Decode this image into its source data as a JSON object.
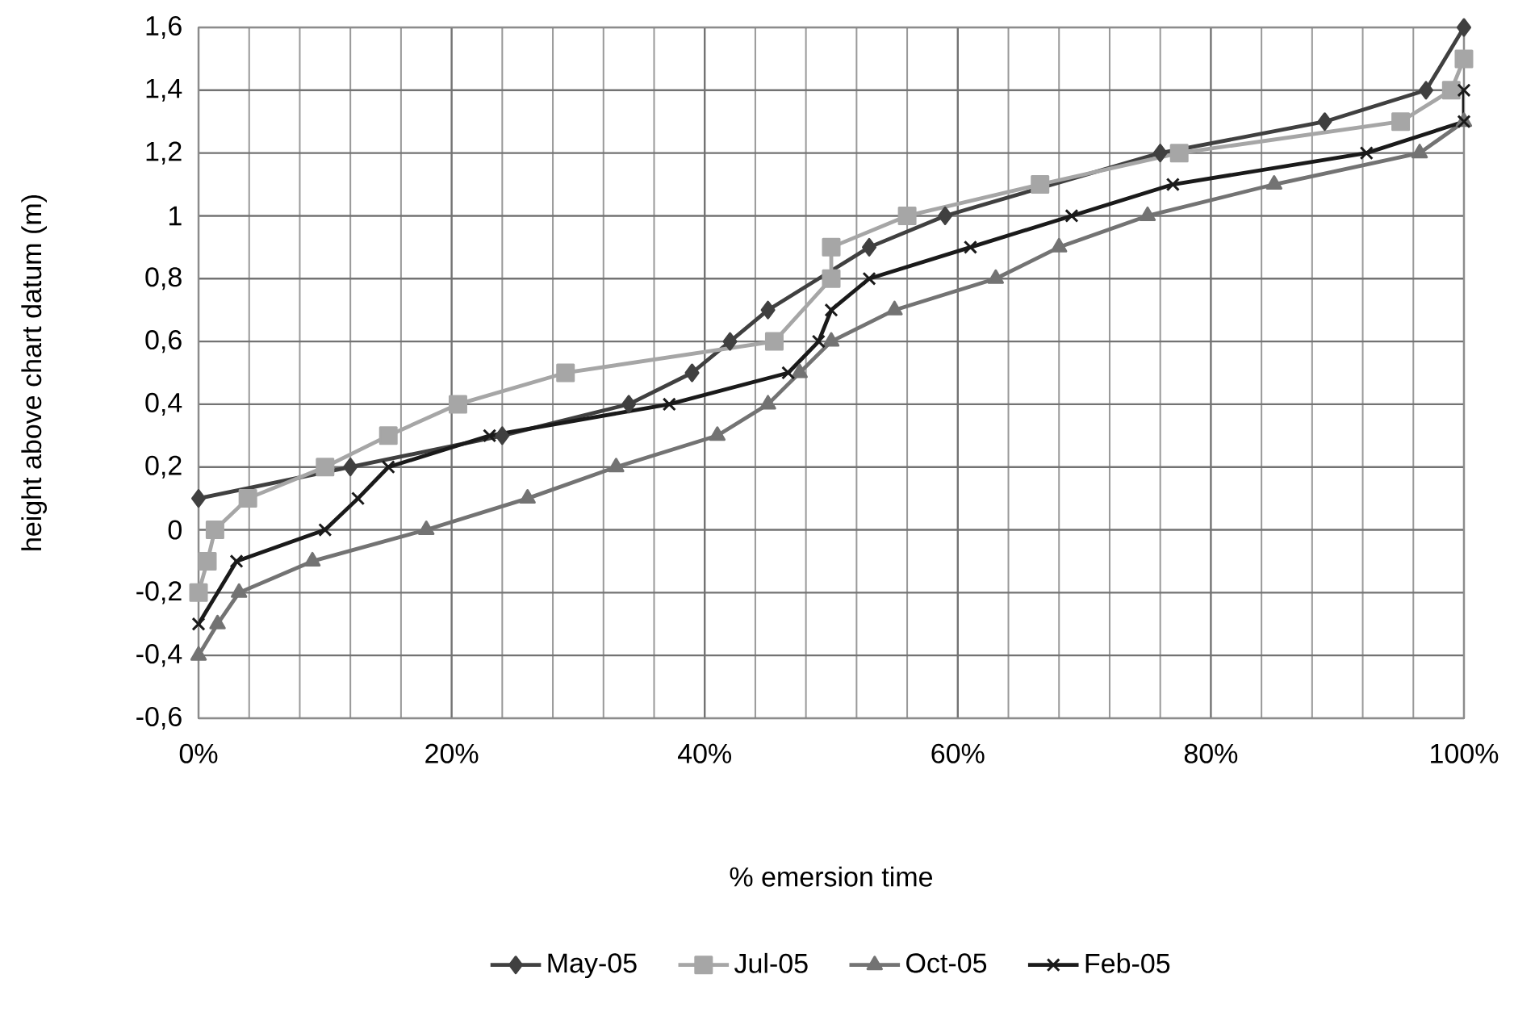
{
  "chart_data": {
    "type": "line",
    "xlabel": "% emersion time",
    "ylabel": "height above chart datum (m)",
    "xlim": [
      0,
      100
    ],
    "ylim": [
      -0.6,
      1.6
    ],
    "xticks": [
      {
        "value": 0,
        "label": "0%"
      },
      {
        "value": 4,
        "label": null
      },
      {
        "value": 8,
        "label": null
      },
      {
        "value": 12,
        "label": null
      },
      {
        "value": 16,
        "label": null
      },
      {
        "value": 20,
        "label": "20%"
      },
      {
        "value": 24,
        "label": null
      },
      {
        "value": 28,
        "label": null
      },
      {
        "value": 32,
        "label": null
      },
      {
        "value": 36,
        "label": null
      },
      {
        "value": 40,
        "label": "40%"
      },
      {
        "value": 44,
        "label": null
      },
      {
        "value": 48,
        "label": null
      },
      {
        "value": 52,
        "label": null
      },
      {
        "value": 56,
        "label": null
      },
      {
        "value": 60,
        "label": "60%"
      },
      {
        "value": 64,
        "label": null
      },
      {
        "value": 68,
        "label": null
      },
      {
        "value": 72,
        "label": null
      },
      {
        "value": 76,
        "label": null
      },
      {
        "value": 80,
        "label": "80%"
      },
      {
        "value": 84,
        "label": null
      },
      {
        "value": 88,
        "label": null
      },
      {
        "value": 92,
        "label": null
      },
      {
        "value": 96,
        "label": null
      },
      {
        "value": 100,
        "label": "100%"
      }
    ],
    "yticks": [
      {
        "value": -0.6,
        "label": "-0,6"
      },
      {
        "value": -0.4,
        "label": "-0,4"
      },
      {
        "value": -0.2,
        "label": "-0,2"
      },
      0,
      {
        "value": 0.2,
        "label": "0,2"
      },
      {
        "value": 0.4,
        "label": "0,4"
      },
      {
        "value": 0.6,
        "label": "0,6"
      },
      {
        "value": 0.8,
        "label": "0,8"
      },
      1,
      {
        "value": 1.2,
        "label": "1,2"
      },
      {
        "value": 1.4,
        "label": "1,4"
      },
      {
        "value": 1.6,
        "label": "1,6"
      }
    ],
    "grid": true,
    "legend": "bottom",
    "series": [
      {
        "name": "May-05",
        "color": "#404040",
        "marker": "diamond",
        "x": [
          0,
          12,
          24,
          34,
          39,
          42,
          45,
          53,
          59,
          76,
          89,
          97,
          100
        ],
        "values": [
          0.1,
          0.2,
          0.3,
          0.4,
          0.5,
          0.6,
          0.7,
          0.9,
          1.0,
          1.2,
          1.3,
          1.4,
          1.6
        ]
      },
      {
        "name": "Jul-05",
        "color": "#a6a6a6",
        "marker": "square",
        "x": [
          0,
          0.7,
          1.3,
          3.9,
          10,
          15,
          20.5,
          29,
          45.5,
          50,
          50,
          56,
          66.5,
          77.5,
          95,
          99,
          100
        ],
        "values": [
          -0.2,
          -0.1,
          0,
          0.1,
          0.2,
          0.3,
          0.4,
          0.5,
          0.6,
          0.8,
          0.9,
          1.0,
          1.1,
          1.2,
          1.3,
          1.4,
          1.5
        ]
      },
      {
        "name": "Oct-05",
        "color": "#737373",
        "marker": "triangle",
        "x": [
          0,
          1.5,
          3.2,
          9,
          18,
          26,
          33,
          41,
          45,
          47.5,
          50,
          55,
          63,
          68,
          75,
          85,
          96.5,
          100
        ],
        "values": [
          -0.4,
          -0.3,
          -0.2,
          -0.1,
          0,
          0.1,
          0.2,
          0.3,
          0.4,
          0.5,
          0.6,
          0.7,
          0.8,
          0.9,
          1.0,
          1.1,
          1.2,
          1.3
        ]
      },
      {
        "name": "Feb-05",
        "color": "#1a1a1a",
        "marker": "cross",
        "x": [
          0,
          3,
          10,
          12.6,
          15,
          23,
          37.2,
          46.6,
          49,
          50,
          53,
          61,
          69,
          77,
          92.3,
          100,
          100
        ],
        "values": [
          -0.3,
          -0.1,
          0,
          0.1,
          0.2,
          0.3,
          0.4,
          0.5,
          0.6,
          0.7,
          0.8,
          0.9,
          1.0,
          1.1,
          1.2,
          1.3,
          1.4
        ]
      }
    ]
  }
}
